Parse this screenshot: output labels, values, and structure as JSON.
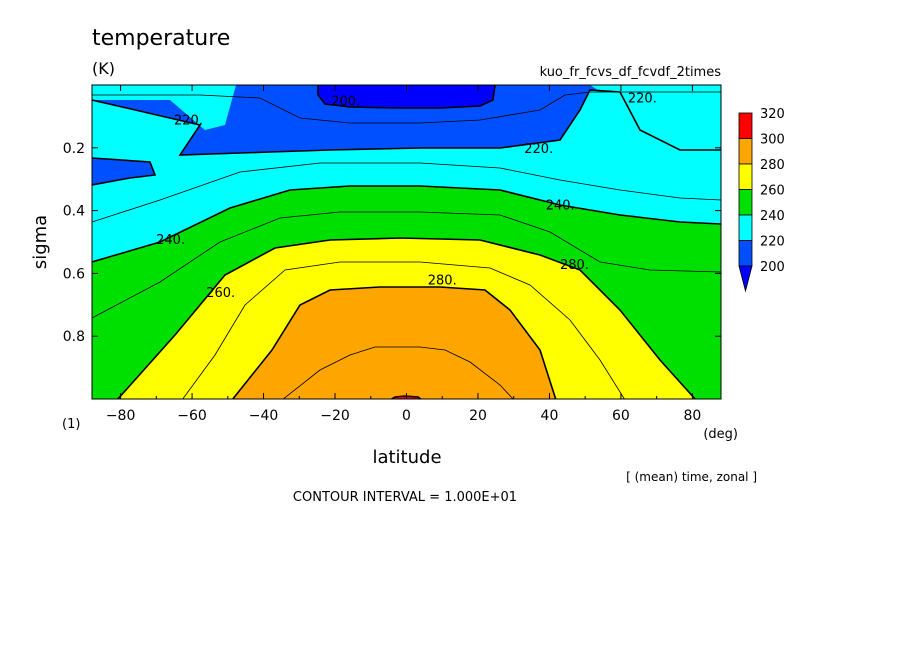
{
  "chart_data": {
    "type": "contour",
    "title": "temperature",
    "units": "(K)",
    "run_label": "kuo_fr_fcvs_df_fcvdf_2times",
    "xlabel": "latitude",
    "x_units": "(deg)",
    "ylabel": "sigma",
    "y_units": "(1)",
    "xlim": [
      -88,
      88
    ],
    "ylim": [
      1.0,
      0.0
    ],
    "x_ticks": [
      -80,
      -60,
      -40,
      -20,
      0,
      20,
      40,
      60,
      80
    ],
    "x_tick_labels": [
      "−80",
      "−60",
      "−40",
      "−20",
      "0",
      "20",
      "40",
      "60",
      "80"
    ],
    "y_ticks": [
      0.2,
      0.4,
      0.6,
      0.8
    ],
    "y_tick_labels": [
      "0.2",
      "0.4",
      "0.6",
      "0.8"
    ],
    "levels": [
      200,
      220,
      240,
      260,
      280,
      300,
      320
    ],
    "colorbar_labels": [
      "320",
      "300",
      "280",
      "260",
      "240",
      "220",
      "200"
    ],
    "colors": {
      "below_200": "#0000ff",
      "200_220": "#0050ff",
      "220_240": "#00ffff",
      "240_260": "#00e000",
      "260_280": "#ffff00",
      "280_300": "#ffa500",
      "300_320": "#ff0000"
    },
    "contour_labels": [
      {
        "text": "200.",
        "x": -17,
        "y": 0.05
      },
      {
        "text": "220.",
        "x": -61,
        "y": 0.11
      },
      {
        "text": "220.",
        "x": 66,
        "y": 0.04
      },
      {
        "text": "220.",
        "x": 37,
        "y": 0.2
      },
      {
        "text": "240.",
        "x": 43,
        "y": 0.38
      },
      {
        "text": "240.",
        "x": -66,
        "y": 0.49
      },
      {
        "text": "260.",
        "x": -52,
        "y": 0.66
      },
      {
        "text": "280.",
        "x": 10,
        "y": 0.62
      },
      {
        "text": "280.",
        "x": 47,
        "y": 0.57
      }
    ],
    "annotation_average": "[ (mean) time, zonal ]",
    "annotation_interval": "CONTOUR INTERVAL = 1.000E+01"
  }
}
